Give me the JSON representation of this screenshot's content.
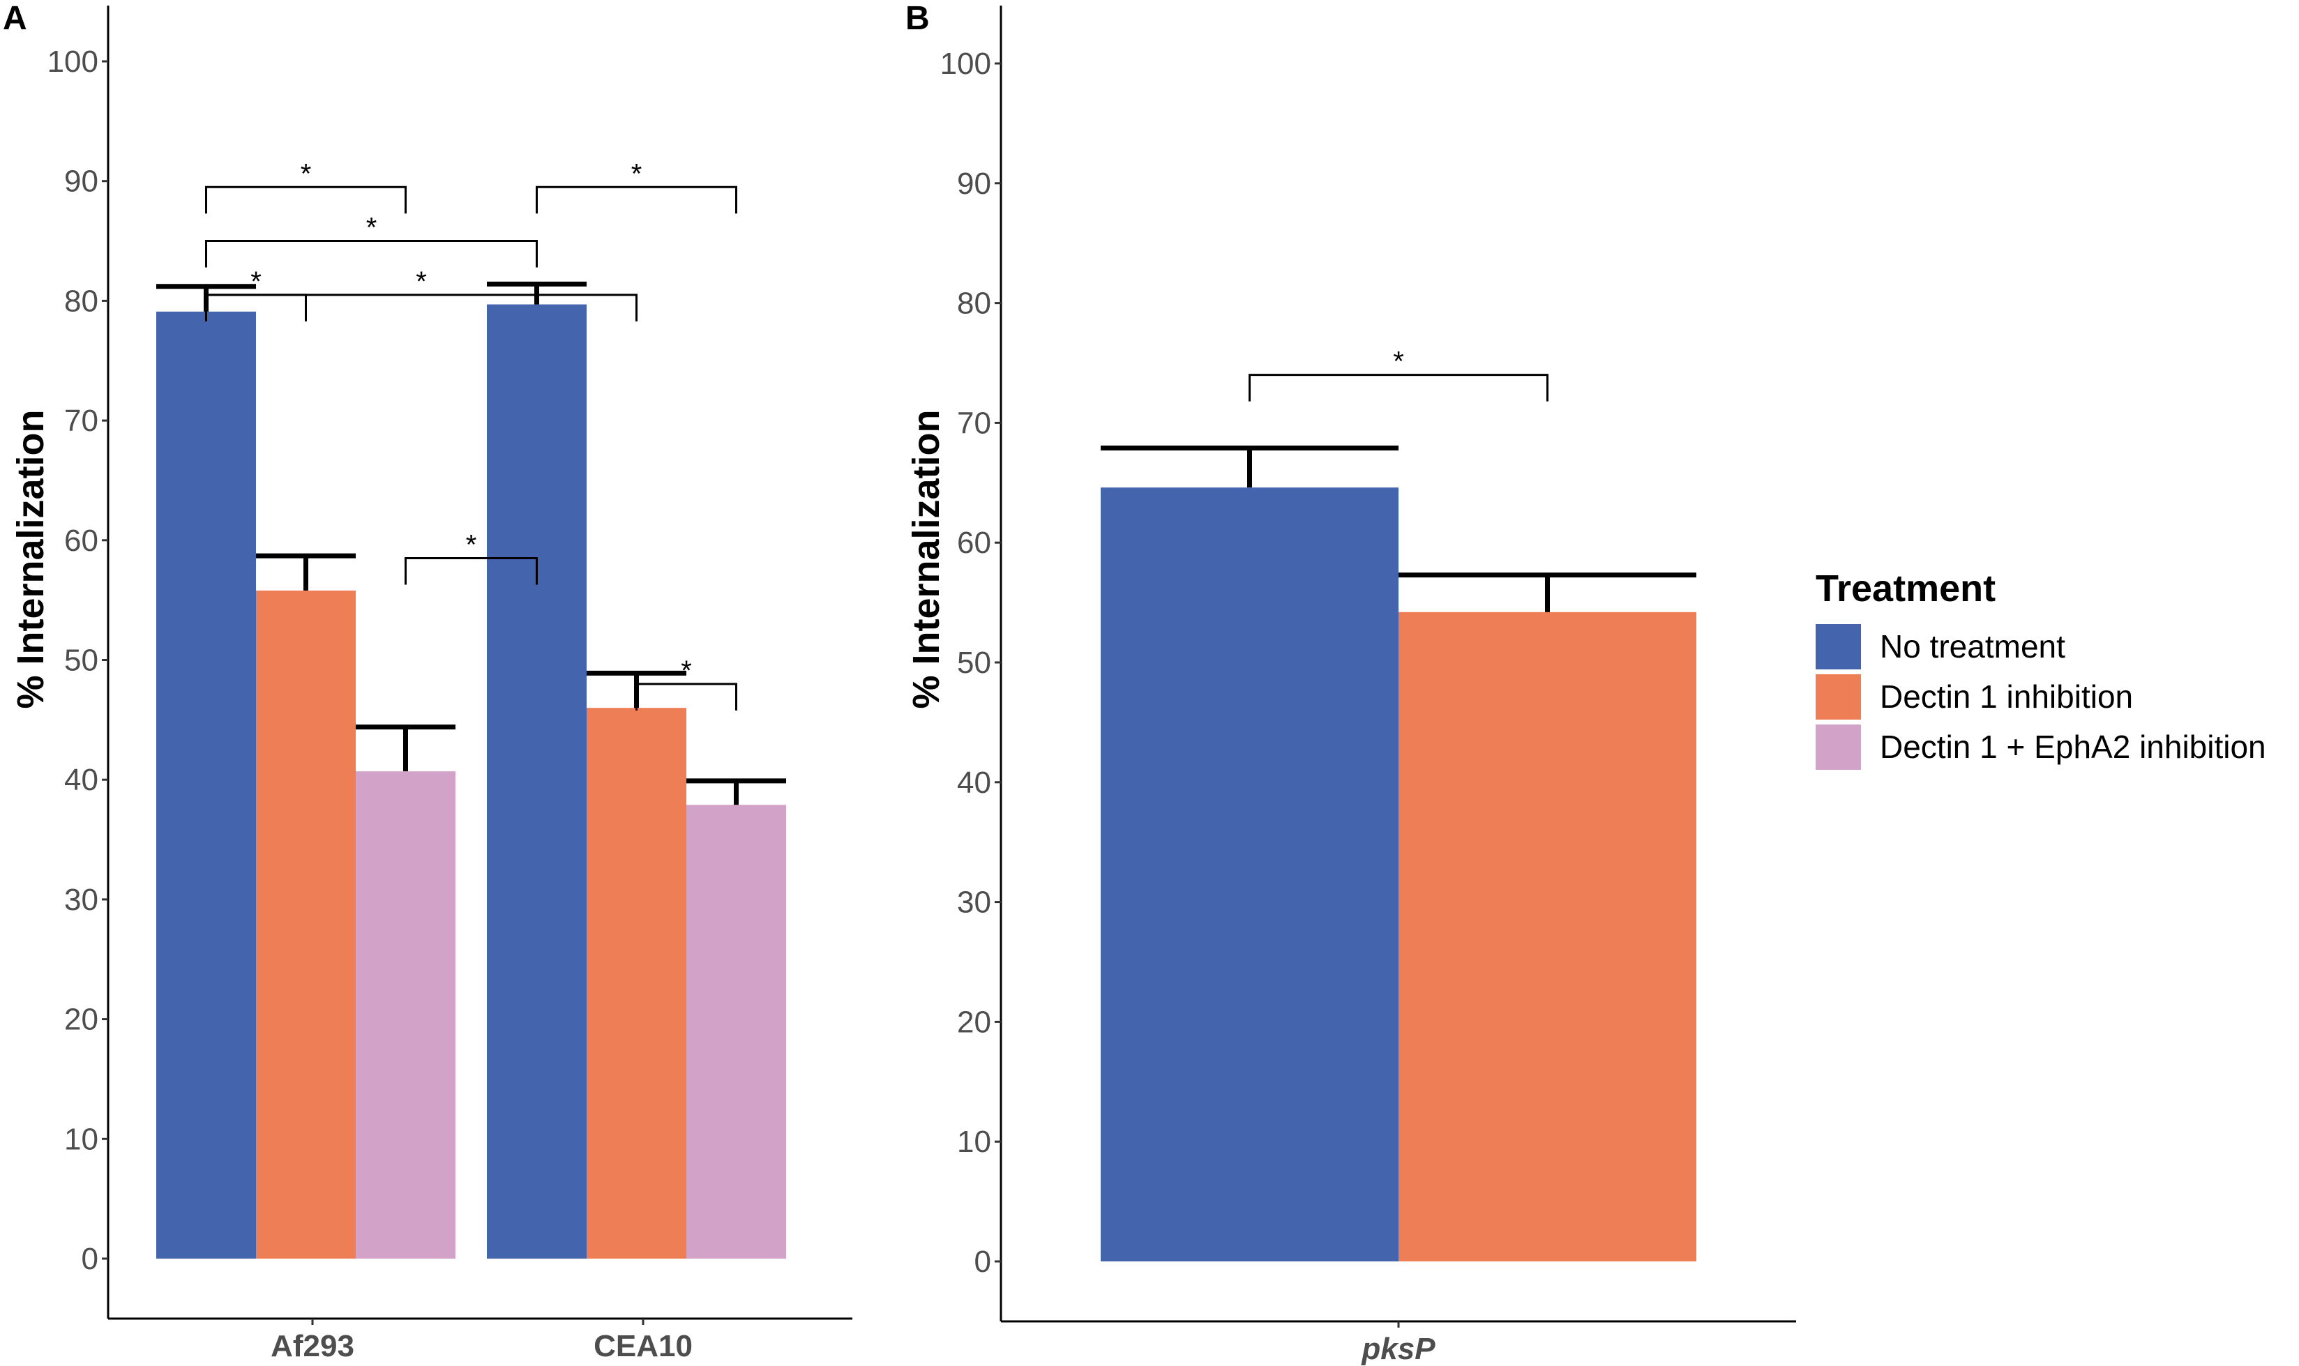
{
  "colors": {
    "no_treatment": "#4464AD",
    "dectin": "#EE7E56",
    "dectin_epha2": "#D2A2C9",
    "axis": "#000000",
    "tick_text": "#4d4d4d"
  },
  "chart_data": [
    {
      "panel": "A",
      "type": "bar",
      "ylabel": "% Internalization",
      "ylim": [
        0,
        100
      ],
      "yticks": [
        0,
        10,
        20,
        30,
        40,
        50,
        60,
        70,
        80,
        90,
        100
      ],
      "categories": [
        "Af293",
        "CEA10"
      ],
      "category_italic": false,
      "series": [
        {
          "name": "No treatment",
          "color_key": "no_treatment",
          "values": [
            79.1,
            79.7
          ],
          "errors": [
            2.1,
            1.7
          ]
        },
        {
          "name": "Dectin 1 inhibition",
          "color_key": "dectin",
          "values": [
            55.8,
            46.0
          ],
          "errors": [
            2.9,
            2.9
          ]
        },
        {
          "name": "Dectin 1 + EphA2 inhibition",
          "color_key": "dectin_epha2",
          "values": [
            40.7,
            37.9
          ],
          "errors": [
            3.7,
            2.0
          ]
        }
      ],
      "significance": [
        {
          "from": [
            0,
            0
          ],
          "to": [
            1,
            0
          ],
          "level": 80.5,
          "label": "*"
        },
        {
          "from": [
            0,
            0
          ],
          "to": [
            0,
            1
          ],
          "level": 85.0,
          "label": "*"
        },
        {
          "from": [
            0,
            1
          ],
          "to": [
            2,
            0
          ],
          "level": 58.5,
          "label": "*"
        },
        {
          "from": [
            0,
            0
          ],
          "to": [
            1,
            1
          ],
          "level": 80.5,
          "label": "*"
        },
        {
          "from": [
            0,
            0
          ],
          "to": [
            2,
            0
          ],
          "level": 89.5,
          "label": "*"
        },
        {
          "from": [
            0,
            1
          ],
          "to": [
            2,
            1
          ],
          "level": 89.5,
          "label": "*"
        },
        {
          "from": [
            1,
            1
          ],
          "to": [
            2,
            1
          ],
          "level": 48.0,
          "label": "*"
        }
      ]
    },
    {
      "panel": "B",
      "type": "bar",
      "ylabel": "% Internalization",
      "ylim": [
        0,
        100
      ],
      "yticks": [
        0,
        10,
        20,
        30,
        40,
        50,
        60,
        70,
        80,
        90,
        100
      ],
      "categories": [
        "pksP"
      ],
      "category_italic": true,
      "series": [
        {
          "name": "No treatment",
          "color_key": "no_treatment",
          "values": [
            64.6
          ],
          "errors": [
            3.3
          ]
        },
        {
          "name": "Dectin 1 inhibition",
          "color_key": "dectin",
          "values": [
            54.2
          ],
          "errors": [
            3.1
          ]
        }
      ],
      "significance": [
        {
          "from": [
            0,
            0
          ],
          "to": [
            1,
            0
          ],
          "level": 74.0,
          "label": "*"
        }
      ]
    }
  ],
  "legend": {
    "title": "Treatment",
    "position": "right",
    "items": [
      {
        "label": "No treatment",
        "color_key": "no_treatment"
      },
      {
        "label": "Dectin 1 inhibition",
        "color_key": "dectin"
      },
      {
        "label": "Dectin 1 + EphA2 inhibition",
        "color_key": "dectin_epha2"
      }
    ]
  }
}
